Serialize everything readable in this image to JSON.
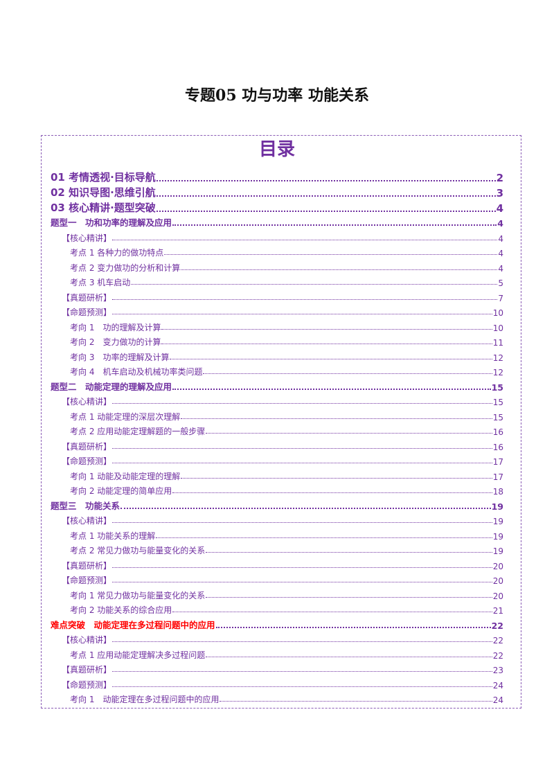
{
  "title": "专题05  功与功率  功能关系",
  "toc_heading": "目录",
  "colors": {
    "accent": "#7030a0",
    "highlight": "#ff0000"
  },
  "entries": [
    {
      "level": 1,
      "label": "01 考情透视·目标导航",
      "page": "2"
    },
    {
      "level": 1,
      "label": "02 知识导图·思维引航",
      "page": "3"
    },
    {
      "level": 1,
      "label": "03 核心精讲·题型突破",
      "page": "4"
    },
    {
      "level": 2,
      "label": "题型一　功和功率的理解及应用",
      "page": "4"
    },
    {
      "level": 3,
      "label": "【核心精讲】",
      "page": "4"
    },
    {
      "level": 4,
      "label": "考点 1  各种力的做功特点",
      "page": "4"
    },
    {
      "level": 4,
      "label": "考点 2  变力做功的分析和计算",
      "page": "4"
    },
    {
      "level": 4,
      "label": "考点 3  机车启动",
      "page": "5"
    },
    {
      "level": 3,
      "label": "【真题研析】",
      "page": "7"
    },
    {
      "level": 3,
      "label": "【命题预测】",
      "page": "10"
    },
    {
      "level": 4,
      "label": "考向 1　功的理解及计算",
      "page": "10"
    },
    {
      "level": 4,
      "label": "考向 2　变力做功的计算",
      "page": "11"
    },
    {
      "level": 4,
      "label": "考向 3　功率的理解及计算",
      "page": "12"
    },
    {
      "level": 4,
      "label": "考向 4　机车启动及机械功率类问题",
      "page": "12"
    },
    {
      "level": 2,
      "label": "题型二　动能定理的理解及应用",
      "page": "15"
    },
    {
      "level": 3,
      "label": "【核心精讲】",
      "page": "15"
    },
    {
      "level": 4,
      "label": "考点 1 动能定理的深层次理解",
      "page": "15"
    },
    {
      "level": 4,
      "label": "考点 2 应用动能定理解题的一般步骤",
      "page": "16"
    },
    {
      "level": 3,
      "label": "【真题研析】",
      "page": "16"
    },
    {
      "level": 3,
      "label": "【命题预测】",
      "page": "17"
    },
    {
      "level": 4,
      "label": "考向 1  动能及动能定理的理解",
      "page": "17"
    },
    {
      "level": 4,
      "label": "考向 2  动能定理的简单应用",
      "page": "18"
    },
    {
      "level": 2,
      "label": "题型三　功能关系",
      "page": "19"
    },
    {
      "level": 3,
      "label": "【核心精讲】",
      "page": "19"
    },
    {
      "level": 4,
      "label": "考点 1  功能关系的理解",
      "page": "19"
    },
    {
      "level": 4,
      "label": "考点 2  常见力做功与能量变化的关系",
      "page": "19"
    },
    {
      "level": 3,
      "label": "【真题研析】",
      "page": "20"
    },
    {
      "level": 3,
      "label": "【命题预测】",
      "page": "20"
    },
    {
      "level": 4,
      "label": "考向 1 常见力做功与能量变化的关系",
      "page": "20"
    },
    {
      "level": 4,
      "label": "考向 2 功能关系的综合应用",
      "page": "21"
    },
    {
      "level": 2,
      "label": "难点突破　动能定理在多过程问题中的应用",
      "page": "22",
      "highlight": true
    },
    {
      "level": 3,
      "label": "【核心精讲】",
      "page": "22"
    },
    {
      "level": 4,
      "label": "考点 1  应用动能定理解决多过程问题",
      "page": "22"
    },
    {
      "level": 3,
      "label": "【真题研析】",
      "page": "23"
    },
    {
      "level": 3,
      "label": "【命题预测】",
      "page": "24"
    },
    {
      "level": 4,
      "label": "考向 1　动能定理在多过程问题中的应用",
      "page": "24"
    }
  ]
}
